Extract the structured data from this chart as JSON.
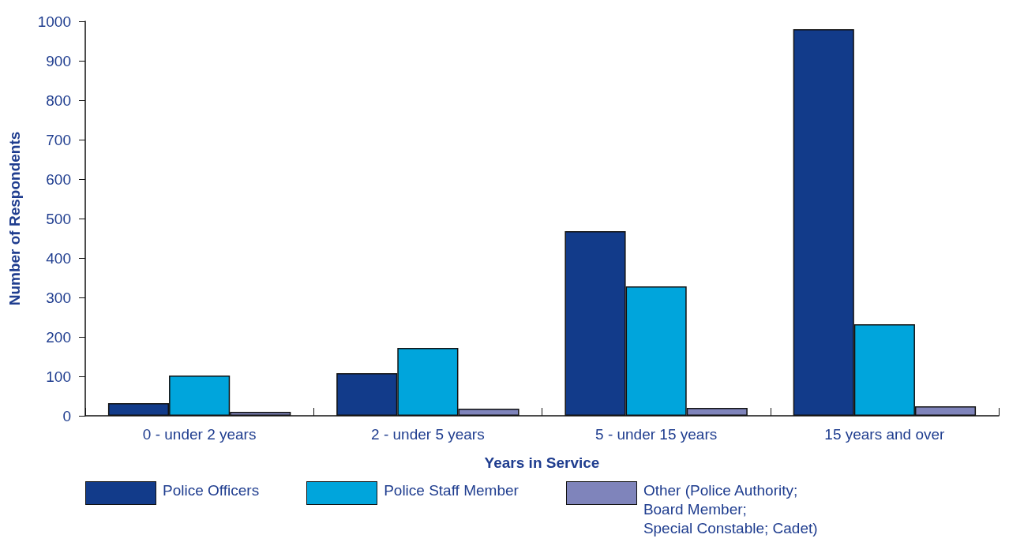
{
  "chart_data": {
    "type": "bar",
    "xlabel": "Years in Service",
    "ylabel": "Number of Respondents",
    "categories": [
      "0 - under 2 years",
      "2 - under 5 years",
      "5 - under 15 years",
      "15 years and over"
    ],
    "series": [
      {
        "name": "Police Officers",
        "color": "#123b8a",
        "values": [
          32,
          108,
          468,
          980
        ]
      },
      {
        "name": "Police Staff Member",
        "color": "#00a5dc",
        "values": [
          102,
          172,
          328,
          232
        ]
      },
      {
        "name": "Other (Police Authority;\nBoard Member;\nSpecial Constable; Cadet)",
        "color": "#7f84bb",
        "values": [
          10,
          18,
          20,
          24
        ]
      }
    ],
    "ylim": [
      0,
      1000
    ],
    "yticks": [
      0,
      100,
      200,
      300,
      400,
      500,
      600,
      700,
      800,
      900,
      1000
    ],
    "grid": false,
    "legend": "bottom"
  }
}
